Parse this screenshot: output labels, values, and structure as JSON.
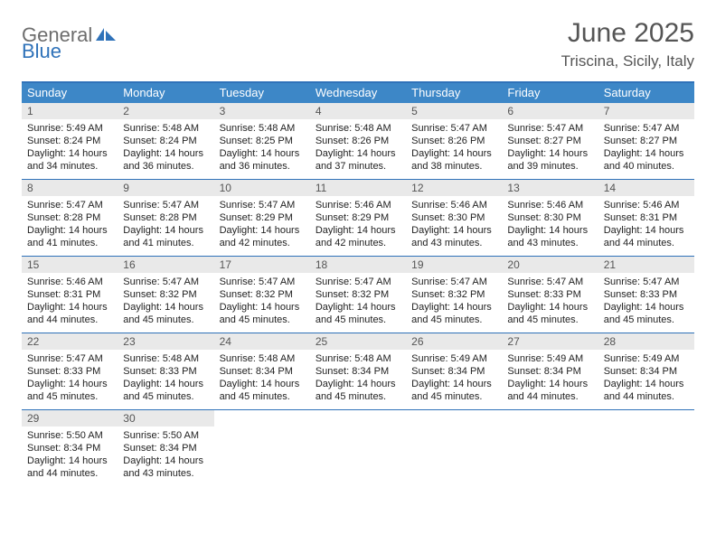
{
  "logo": {
    "word1": "General",
    "word2": "Blue"
  },
  "title": "June 2025",
  "location": "Triscina, Sicily, Italy",
  "header_bg": "#3d87c7",
  "accent": "#2f72b9",
  "band_bg": "#e9e9e9",
  "day_names": [
    "Sunday",
    "Monday",
    "Tuesday",
    "Wednesday",
    "Thursday",
    "Friday",
    "Saturday"
  ],
  "weeks": [
    [
      {
        "n": "1",
        "sunrise": "5:49 AM",
        "sunset": "8:24 PM",
        "h": 14,
        "m": 34
      },
      {
        "n": "2",
        "sunrise": "5:48 AM",
        "sunset": "8:24 PM",
        "h": 14,
        "m": 36
      },
      {
        "n": "3",
        "sunrise": "5:48 AM",
        "sunset": "8:25 PM",
        "h": 14,
        "m": 36
      },
      {
        "n": "4",
        "sunrise": "5:48 AM",
        "sunset": "8:26 PM",
        "h": 14,
        "m": 37
      },
      {
        "n": "5",
        "sunrise": "5:47 AM",
        "sunset": "8:26 PM",
        "h": 14,
        "m": 38
      },
      {
        "n": "6",
        "sunrise": "5:47 AM",
        "sunset": "8:27 PM",
        "h": 14,
        "m": 39
      },
      {
        "n": "7",
        "sunrise": "5:47 AM",
        "sunset": "8:27 PM",
        "h": 14,
        "m": 40
      }
    ],
    [
      {
        "n": "8",
        "sunrise": "5:47 AM",
        "sunset": "8:28 PM",
        "h": 14,
        "m": 41
      },
      {
        "n": "9",
        "sunrise": "5:47 AM",
        "sunset": "8:28 PM",
        "h": 14,
        "m": 41
      },
      {
        "n": "10",
        "sunrise": "5:47 AM",
        "sunset": "8:29 PM",
        "h": 14,
        "m": 42
      },
      {
        "n": "11",
        "sunrise": "5:46 AM",
        "sunset": "8:29 PM",
        "h": 14,
        "m": 42
      },
      {
        "n": "12",
        "sunrise": "5:46 AM",
        "sunset": "8:30 PM",
        "h": 14,
        "m": 43
      },
      {
        "n": "13",
        "sunrise": "5:46 AM",
        "sunset": "8:30 PM",
        "h": 14,
        "m": 43
      },
      {
        "n": "14",
        "sunrise": "5:46 AM",
        "sunset": "8:31 PM",
        "h": 14,
        "m": 44
      }
    ],
    [
      {
        "n": "15",
        "sunrise": "5:46 AM",
        "sunset": "8:31 PM",
        "h": 14,
        "m": 44
      },
      {
        "n": "16",
        "sunrise": "5:47 AM",
        "sunset": "8:32 PM",
        "h": 14,
        "m": 45
      },
      {
        "n": "17",
        "sunrise": "5:47 AM",
        "sunset": "8:32 PM",
        "h": 14,
        "m": 45
      },
      {
        "n": "18",
        "sunrise": "5:47 AM",
        "sunset": "8:32 PM",
        "h": 14,
        "m": 45
      },
      {
        "n": "19",
        "sunrise": "5:47 AM",
        "sunset": "8:32 PM",
        "h": 14,
        "m": 45
      },
      {
        "n": "20",
        "sunrise": "5:47 AM",
        "sunset": "8:33 PM",
        "h": 14,
        "m": 45
      },
      {
        "n": "21",
        "sunrise": "5:47 AM",
        "sunset": "8:33 PM",
        "h": 14,
        "m": 45
      }
    ],
    [
      {
        "n": "22",
        "sunrise": "5:47 AM",
        "sunset": "8:33 PM",
        "h": 14,
        "m": 45
      },
      {
        "n": "23",
        "sunrise": "5:48 AM",
        "sunset": "8:33 PM",
        "h": 14,
        "m": 45
      },
      {
        "n": "24",
        "sunrise": "5:48 AM",
        "sunset": "8:34 PM",
        "h": 14,
        "m": 45
      },
      {
        "n": "25",
        "sunrise": "5:48 AM",
        "sunset": "8:34 PM",
        "h": 14,
        "m": 45
      },
      {
        "n": "26",
        "sunrise": "5:49 AM",
        "sunset": "8:34 PM",
        "h": 14,
        "m": 45
      },
      {
        "n": "27",
        "sunrise": "5:49 AM",
        "sunset": "8:34 PM",
        "h": 14,
        "m": 44
      },
      {
        "n": "28",
        "sunrise": "5:49 AM",
        "sunset": "8:34 PM",
        "h": 14,
        "m": 44
      }
    ],
    [
      {
        "n": "29",
        "sunrise": "5:50 AM",
        "sunset": "8:34 PM",
        "h": 14,
        "m": 44
      },
      {
        "n": "30",
        "sunrise": "5:50 AM",
        "sunset": "8:34 PM",
        "h": 14,
        "m": 43
      },
      null,
      null,
      null,
      null,
      null
    ]
  ]
}
